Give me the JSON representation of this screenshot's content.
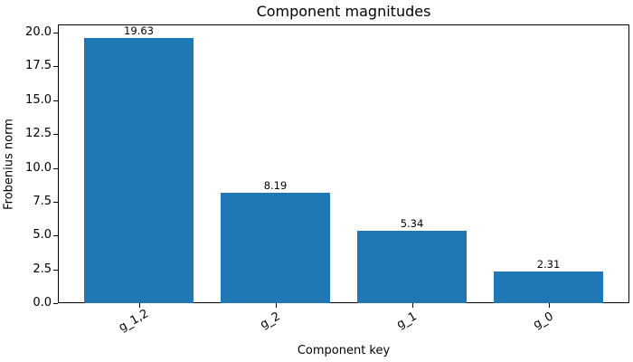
{
  "chart_data": {
    "type": "bar",
    "title": "Component magnitudes",
    "xlabel": "Component key",
    "ylabel": "Frobenius norm",
    "categories": [
      "g_1,2",
      "g_2",
      "g_1",
      "g_0"
    ],
    "values": [
      19.63,
      8.19,
      5.34,
      2.31
    ],
    "value_labels": [
      "19.63",
      "8.19",
      "5.34",
      "2.31"
    ],
    "ylim": [
      0,
      20.6
    ],
    "yticks": [
      "0.0",
      "2.5",
      "5.0",
      "7.5",
      "10.0",
      "12.5",
      "15.0",
      "17.5",
      "20.0"
    ],
    "ytick_values": [
      0,
      2.5,
      5,
      7.5,
      10,
      12.5,
      15,
      17.5,
      20
    ],
    "bar_color": "#1f77b4",
    "grid": false,
    "legend": null
  }
}
